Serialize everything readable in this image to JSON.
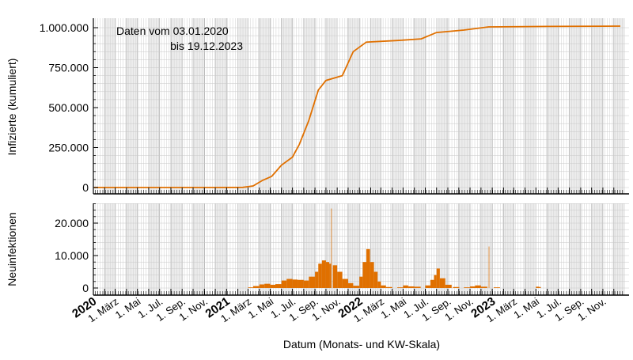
{
  "chart_data": [
    {
      "type": "line",
      "ylabel": "Infizierte (kumuliert)",
      "annotation": [
        "Daten vom 03.01.2020",
        "bis 19.12.2023"
      ],
      "ylim": [
        0,
        1000000
      ],
      "yticks": [
        0,
        250000,
        500000,
        750000,
        1000000
      ],
      "ytick_labels": [
        "0",
        "250.000",
        "500.000",
        "750.000",
        "1.000.000"
      ],
      "color": "#e07000",
      "grid": true,
      "points": [
        [
          "2020-01-03",
          0
        ],
        [
          "2020-12-01",
          0
        ],
        [
          "2021-02-15",
          1000
        ],
        [
          "2021-03-15",
          10000
        ],
        [
          "2021-04-10",
          45000
        ],
        [
          "2021-05-05",
          70000
        ],
        [
          "2021-06-01",
          140000
        ],
        [
          "2021-07-01",
          190000
        ],
        [
          "2021-07-20",
          270000
        ],
        [
          "2021-08-15",
          420000
        ],
        [
          "2021-09-10",
          610000
        ],
        [
          "2021-10-01",
          670000
        ],
        [
          "2021-11-15",
          700000
        ],
        [
          "2021-12-15",
          850000
        ],
        [
          "2022-01-20",
          910000
        ],
        [
          "2022-04-15",
          920000
        ],
        [
          "2022-06-20",
          930000
        ],
        [
          "2022-08-01",
          970000
        ],
        [
          "2022-10-15",
          985000
        ],
        [
          "2022-12-22",
          1005000
        ],
        [
          "2023-06-01",
          1008000
        ],
        [
          "2023-12-19",
          1010000
        ]
      ]
    },
    {
      "type": "bar",
      "ylabel": "Neuinfektionen",
      "xlabel": "Datum (Monats- und KW-Skala)",
      "ylim": [
        0,
        26000
      ],
      "yticks": [
        0,
        10000,
        20000
      ],
      "ytick_labels": [
        "0",
        "10.000",
        "20.000"
      ],
      "color": "#e07000",
      "grid": true,
      "xtick_labels": [
        "2020",
        "1. März",
        "1. Mai",
        "1. Jul.",
        "1. Sep.",
        "1. Nov.",
        "2021",
        "1. März",
        "1. Mai",
        "1. Jul.",
        "1. Sep.",
        "1. Nov.",
        "2022",
        "1. März",
        "1. Mai",
        "1. Jul.",
        "1. Sep.",
        "1. Nov.",
        "2023",
        "1. März",
        "1. Mai",
        "1. Jul.",
        "1. Sep.",
        "1. Nov."
      ],
      "xtick_dates": [
        "2020-01-01",
        "2020-03-01",
        "2020-05-01",
        "2020-07-01",
        "2020-09-01",
        "2020-11-01",
        "2021-01-01",
        "2021-03-01",
        "2021-05-01",
        "2021-07-01",
        "2021-09-01",
        "2021-11-01",
        "2022-01-01",
        "2022-03-01",
        "2022-05-01",
        "2022-07-01",
        "2022-09-01",
        "2022-11-01",
        "2023-01-01",
        "2023-03-01",
        "2023-05-01",
        "2023-07-01",
        "2023-09-01",
        "2023-11-01"
      ],
      "points": [
        [
          "2021-03-01",
          200
        ],
        [
          "2021-03-15",
          600
        ],
        [
          "2021-04-01",
          1100
        ],
        [
          "2021-04-15",
          1300
        ],
        [
          "2021-05-01",
          1000
        ],
        [
          "2021-05-15",
          1200
        ],
        [
          "2021-06-01",
          2300
        ],
        [
          "2021-06-15",
          2800
        ],
        [
          "2021-07-01",
          2600
        ],
        [
          "2021-07-15",
          2500
        ],
        [
          "2021-08-01",
          2300
        ],
        [
          "2021-08-15",
          3500
        ],
        [
          "2021-09-01",
          5000
        ],
        [
          "2021-09-10",
          7500
        ],
        [
          "2021-09-20",
          8500
        ],
        [
          "2021-10-01",
          8000
        ],
        [
          "2021-10-10",
          7500
        ],
        [
          "2021-10-15",
          24500
        ],
        [
          "2021-10-20",
          7000
        ],
        [
          "2021-11-01",
          5000
        ],
        [
          "2021-11-15",
          2800
        ],
        [
          "2021-12-01",
          1500
        ],
        [
          "2021-12-15",
          700
        ],
        [
          "2022-01-01",
          3500
        ],
        [
          "2022-01-10",
          8000
        ],
        [
          "2022-01-20",
          12000
        ],
        [
          "2022-01-30",
          8000
        ],
        [
          "2022-02-10",
          5000
        ],
        [
          "2022-02-20",
          2000
        ],
        [
          "2022-03-01",
          800
        ],
        [
          "2022-03-15",
          300
        ],
        [
          "2022-04-15",
          200
        ],
        [
          "2022-05-01",
          800
        ],
        [
          "2022-05-15",
          500
        ],
        [
          "2022-06-01",
          400
        ],
        [
          "2022-07-01",
          800
        ],
        [
          "2022-07-15",
          2500
        ],
        [
          "2022-07-25",
          4000
        ],
        [
          "2022-08-01",
          6000
        ],
        [
          "2022-08-10",
          3000
        ],
        [
          "2022-08-25",
          1000
        ],
        [
          "2022-09-15",
          300
        ],
        [
          "2022-10-15",
          200
        ],
        [
          "2022-11-01",
          500
        ],
        [
          "2022-11-15",
          800
        ],
        [
          "2022-12-01",
          400
        ],
        [
          "2022-12-22",
          12800
        ],
        [
          "2023-01-05",
          200
        ],
        [
          "2023-05-01",
          400
        ],
        [
          "2023-05-10",
          300
        ]
      ]
    }
  ]
}
